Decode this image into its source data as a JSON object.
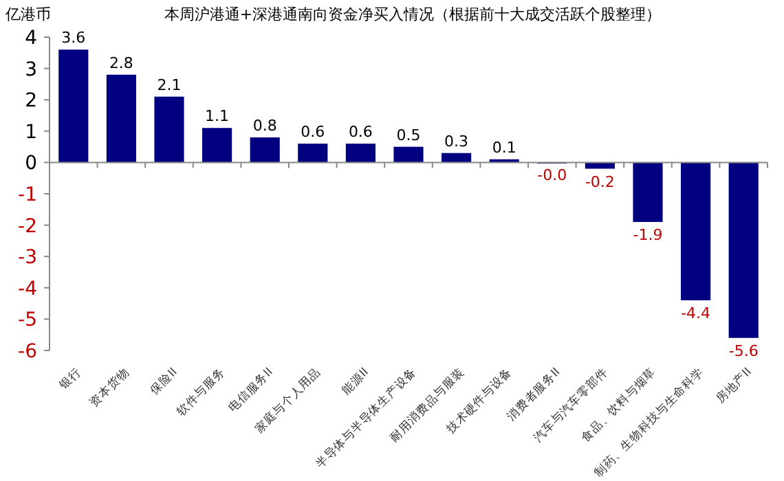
{
  "chart_data": {
    "type": "bar",
    "title": "本周沪港通+深港通南向资金净买入情况（根据前十大成交活跃个股整理）",
    "ylabel": "亿港币",
    "categories": [
      "银行",
      "资本货物",
      "保险II",
      "软件与服务",
      "电信服务II",
      "家庭与个人用品",
      "能源II",
      "半导体与半导体生产设备",
      "耐用消费品与服装",
      "技术硬件与设备",
      "消费者服务II",
      "汽车与汽车零部件",
      "食品、饮料与烟草",
      "制药、生物科技与生命科学",
      "房地产II"
    ],
    "values": [
      3.6,
      2.8,
      2.1,
      1.1,
      0.8,
      0.6,
      0.6,
      0.5,
      0.3,
      0.1,
      0,
      -0.2,
      -1.9,
      -4.4,
      -5.6
    ],
    "value_labels": [
      "3.6",
      "2.8",
      "2.1",
      "1.1",
      "0.8",
      "0.6",
      "0.6",
      "0.5",
      "0.3",
      "0.1",
      "-0.0",
      "-0.2",
      "-1.9",
      "-4.4",
      "-5.6"
    ],
    "color": "#000080",
    "ylim": [
      -6,
      4
    ],
    "yticks": [
      -6,
      -5,
      -4,
      -3,
      -2,
      -1,
      0,
      1,
      2,
      3,
      4
    ]
  }
}
